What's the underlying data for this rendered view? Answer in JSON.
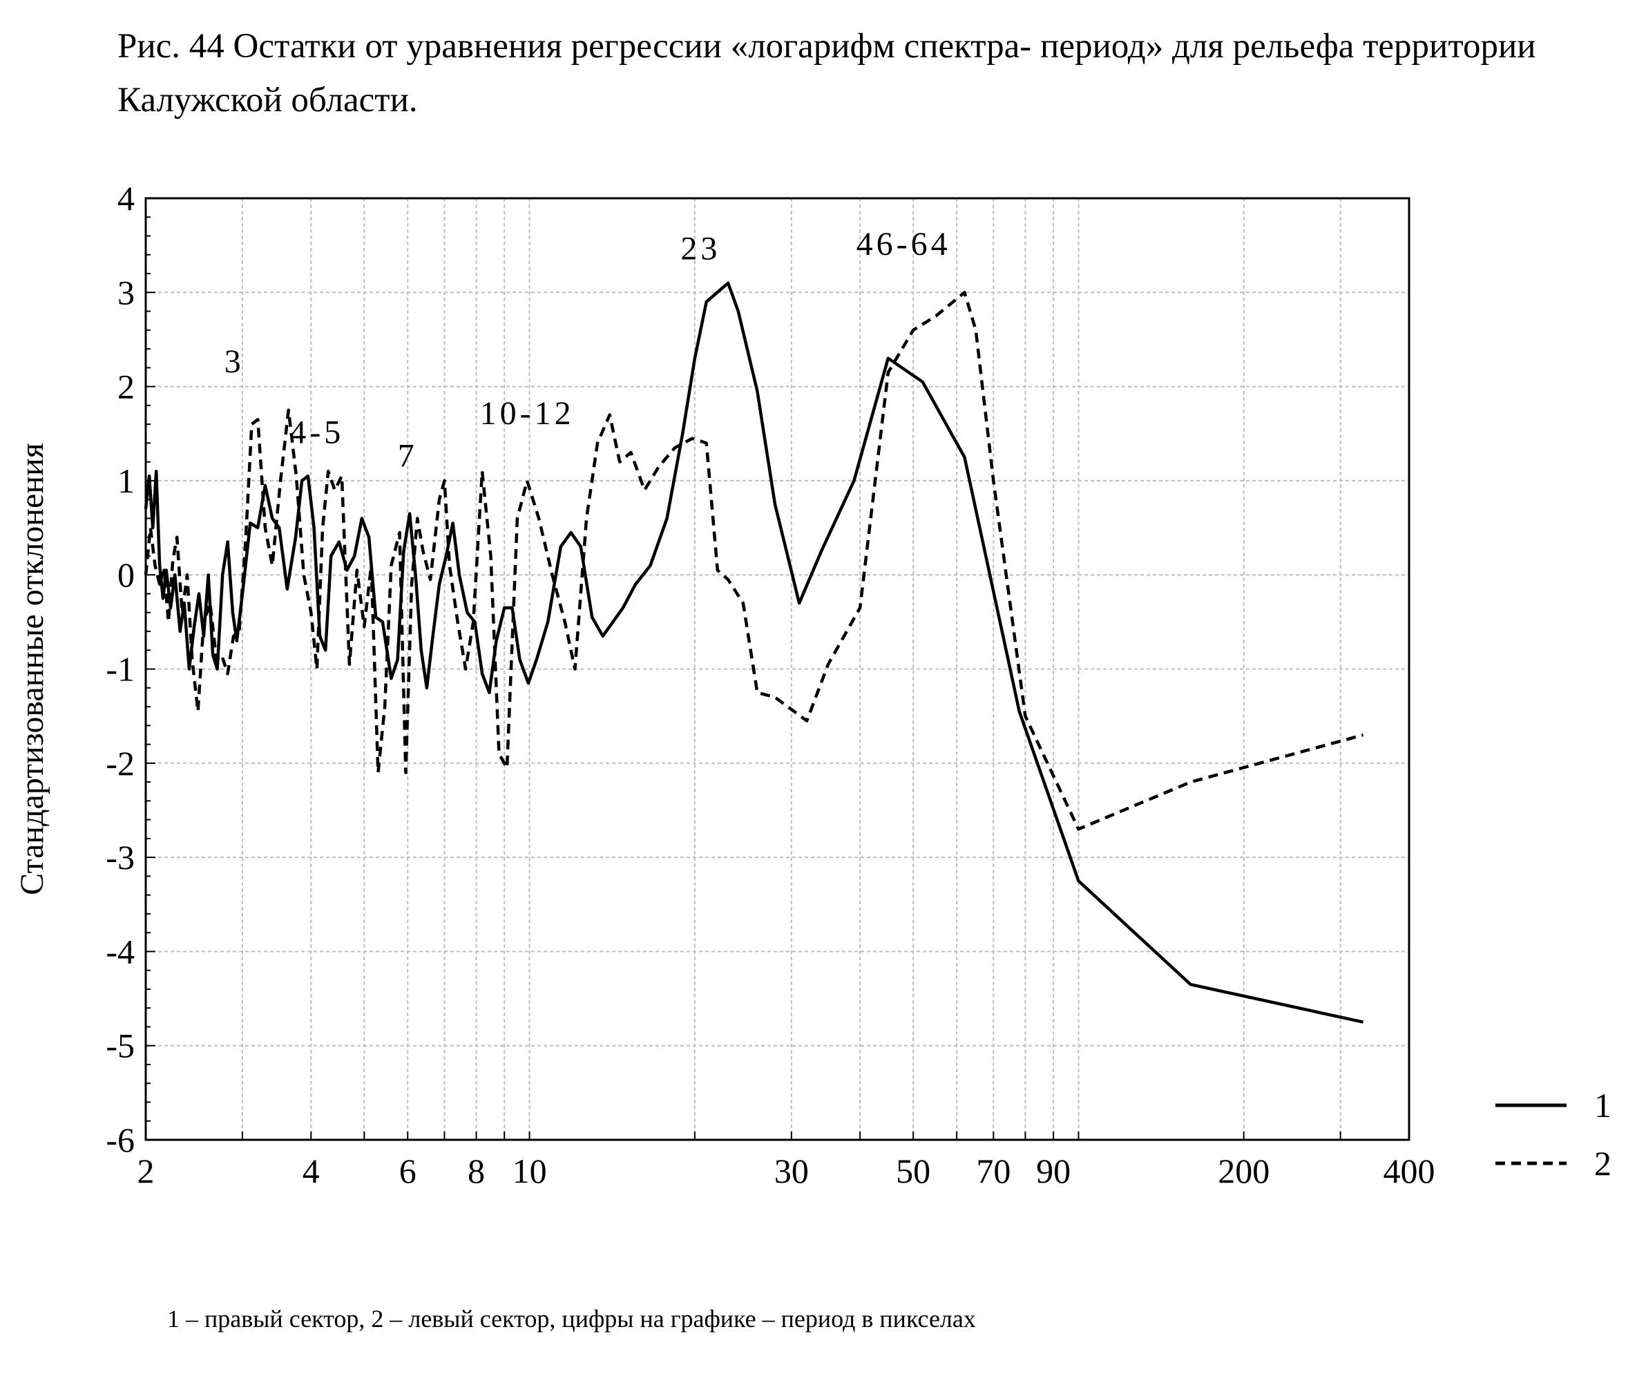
{
  "caption": "Рис. 44 Остатки от уравнения регрессии «логарифм спектра- период» для рельефа территории Калужской области.",
  "note": "1 – правый сектор, 2 – левый сектор, цифры на графике – период в пикселах",
  "chart_data": {
    "type": "line",
    "ylabel": "Стандартизованные отклонения",
    "xlabel": "",
    "x_scale": "log",
    "xlim": [
      2,
      400
    ],
    "ylim": [
      -6,
      4
    ],
    "grid": true,
    "legend_position": "right",
    "x_tick_labels": [
      "2",
      "4",
      "6",
      "8",
      "10",
      "30",
      "50",
      "70",
      "90",
      "200",
      "400"
    ],
    "y_tick_labels": [
      "4",
      "3",
      "2",
      "1",
      "0",
      "-1",
      "-2",
      "-3",
      "-4",
      "-5",
      "-6"
    ],
    "annotations": [
      {
        "text": "3",
        "x": 2.9,
        "y": 2.15
      },
      {
        "text": "4-5",
        "x": 4.1,
        "y": 1.4
      },
      {
        "text": "7",
        "x": 6,
        "y": 1.15
      },
      {
        "text": "10-12",
        "x": 9.9,
        "y": 1.6
      },
      {
        "text": "23",
        "x": 20.5,
        "y": 3.35
      },
      {
        "text": "46-64",
        "x": 48,
        "y": 3.4
      }
    ],
    "series": [
      {
        "name": "1",
        "style": "solid",
        "points": [
          [
            2.0,
            0.7
          ],
          [
            2.03,
            1.05
          ],
          [
            2.06,
            0.5
          ],
          [
            2.09,
            1.1
          ],
          [
            2.12,
            0.1
          ],
          [
            2.15,
            -0.25
          ],
          [
            2.18,
            0.05
          ],
          [
            2.22,
            -0.35
          ],
          [
            2.26,
            0.0
          ],
          [
            2.31,
            -0.6
          ],
          [
            2.35,
            -0.3
          ],
          [
            2.4,
            -1.0
          ],
          [
            2.45,
            -0.55
          ],
          [
            2.5,
            -0.2
          ],
          [
            2.55,
            -0.65
          ],
          [
            2.6,
            0.0
          ],
          [
            2.65,
            -0.85
          ],
          [
            2.7,
            -1.0
          ],
          [
            2.76,
            0.0
          ],
          [
            2.82,
            0.35
          ],
          [
            2.88,
            -0.4
          ],
          [
            2.93,
            -0.7
          ],
          [
            3.0,
            -0.2
          ],
          [
            3.1,
            0.55
          ],
          [
            3.2,
            0.5
          ],
          [
            3.3,
            0.95
          ],
          [
            3.4,
            0.6
          ],
          [
            3.5,
            0.5
          ],
          [
            3.62,
            -0.15
          ],
          [
            3.75,
            0.4
          ],
          [
            3.85,
            1.0
          ],
          [
            3.95,
            1.05
          ],
          [
            4.05,
            0.5
          ],
          [
            4.15,
            -0.65
          ],
          [
            4.25,
            -0.8
          ],
          [
            4.35,
            0.2
          ],
          [
            4.5,
            0.35
          ],
          [
            4.65,
            0.05
          ],
          [
            4.8,
            0.2
          ],
          [
            4.95,
            0.6
          ],
          [
            5.1,
            0.4
          ],
          [
            5.25,
            -0.45
          ],
          [
            5.4,
            -0.5
          ],
          [
            5.6,
            -1.1
          ],
          [
            5.75,
            -0.9
          ],
          [
            5.9,
            0.25
          ],
          [
            6.05,
            0.65
          ],
          [
            6.2,
            0.0
          ],
          [
            6.35,
            -0.8
          ],
          [
            6.5,
            -1.2
          ],
          [
            6.65,
            -0.7
          ],
          [
            6.85,
            -0.1
          ],
          [
            7.05,
            0.2
          ],
          [
            7.25,
            0.55
          ],
          [
            7.45,
            0.0
          ],
          [
            7.7,
            -0.4
          ],
          [
            7.95,
            -0.5
          ],
          [
            8.2,
            -1.05
          ],
          [
            8.45,
            -1.25
          ],
          [
            8.7,
            -0.7
          ],
          [
            9.0,
            -0.35
          ],
          [
            9.3,
            -0.35
          ],
          [
            9.6,
            -0.9
          ],
          [
            9.95,
            -1.15
          ],
          [
            10.3,
            -0.9
          ],
          [
            10.8,
            -0.5
          ],
          [
            11.4,
            0.3
          ],
          [
            11.9,
            0.45
          ],
          [
            12.4,
            0.3
          ],
          [
            13.0,
            -0.45
          ],
          [
            13.6,
            -0.65
          ],
          [
            14.8,
            -0.35
          ],
          [
            15.6,
            -0.1
          ],
          [
            16.6,
            0.1
          ],
          [
            17.8,
            0.6
          ],
          [
            19.0,
            1.5
          ],
          [
            20.0,
            2.3
          ],
          [
            21.0,
            2.9
          ],
          [
            23.0,
            3.1
          ],
          [
            24.0,
            2.8
          ],
          [
            26.0,
            1.95
          ],
          [
            28.0,
            0.75
          ],
          [
            31.0,
            -0.3
          ],
          [
            34.0,
            0.25
          ],
          [
            39.0,
            1.0
          ],
          [
            45.0,
            2.3
          ],
          [
            52.0,
            2.05
          ],
          [
            62.0,
            1.25
          ],
          [
            78.0,
            -1.45
          ],
          [
            100.0,
            -3.25
          ],
          [
            160.0,
            -4.35
          ],
          [
            330.0,
            -4.75
          ]
        ]
      },
      {
        "name": "2",
        "style": "dashed",
        "points": [
          [
            2.0,
            0.0
          ],
          [
            2.04,
            0.5
          ],
          [
            2.08,
            0.1
          ],
          [
            2.12,
            -0.1
          ],
          [
            2.16,
            0.05
          ],
          [
            2.2,
            -0.5
          ],
          [
            2.24,
            0.15
          ],
          [
            2.28,
            0.4
          ],
          [
            2.33,
            -0.4
          ],
          [
            2.38,
            0.0
          ],
          [
            2.43,
            -0.9
          ],
          [
            2.49,
            -1.45
          ],
          [
            2.55,
            -0.5
          ],
          [
            2.62,
            -0.3
          ],
          [
            2.69,
            -0.9
          ],
          [
            2.75,
            -0.85
          ],
          [
            2.82,
            -1.05
          ],
          [
            2.89,
            -0.65
          ],
          [
            2.96,
            -0.6
          ],
          [
            3.04,
            0.35
          ],
          [
            3.12,
            1.6
          ],
          [
            3.2,
            1.65
          ],
          [
            3.3,
            0.5
          ],
          [
            3.4,
            0.1
          ],
          [
            3.52,
            1.0
          ],
          [
            3.64,
            1.75
          ],
          [
            3.76,
            1.05
          ],
          [
            3.88,
            0.0
          ],
          [
            4.0,
            -0.4
          ],
          [
            4.1,
            -1.0
          ],
          [
            4.2,
            0.5
          ],
          [
            4.3,
            1.1
          ],
          [
            4.42,
            0.9
          ],
          [
            4.55,
            1.05
          ],
          [
            4.7,
            -0.95
          ],
          [
            4.85,
            0.05
          ],
          [
            5.0,
            -0.55
          ],
          [
            5.15,
            0.1
          ],
          [
            5.3,
            -2.1
          ],
          [
            5.45,
            -1.4
          ],
          [
            5.6,
            0.1
          ],
          [
            5.8,
            0.45
          ],
          [
            5.95,
            -2.1
          ],
          [
            6.1,
            -0.1
          ],
          [
            6.25,
            0.6
          ],
          [
            6.4,
            0.25
          ],
          [
            6.6,
            -0.05
          ],
          [
            6.85,
            0.8
          ],
          [
            7.0,
            1.0
          ],
          [
            7.15,
            0.1
          ],
          [
            7.4,
            -0.5
          ],
          [
            7.65,
            -1.0
          ],
          [
            7.9,
            -0.5
          ],
          [
            8.2,
            1.1
          ],
          [
            8.5,
            0.2
          ],
          [
            8.8,
            -1.9
          ],
          [
            9.1,
            -2.05
          ],
          [
            9.5,
            0.6
          ],
          [
            9.9,
            1.0
          ],
          [
            10.4,
            0.6
          ],
          [
            11.0,
            0.0
          ],
          [
            11.6,
            -0.5
          ],
          [
            12.1,
            -1.0
          ],
          [
            12.7,
            0.6
          ],
          [
            13.3,
            1.4
          ],
          [
            14.0,
            1.7
          ],
          [
            14.6,
            1.2
          ],
          [
            15.3,
            1.3
          ],
          [
            16.2,
            0.9
          ],
          [
            17.2,
            1.15
          ],
          [
            18.4,
            1.35
          ],
          [
            19.8,
            1.45
          ],
          [
            21.0,
            1.4
          ],
          [
            22.0,
            0.05
          ],
          [
            23.0,
            -0.05
          ],
          [
            24.5,
            -0.3
          ],
          [
            26.0,
            -1.25
          ],
          [
            28.0,
            -1.3
          ],
          [
            32.0,
            -1.55
          ],
          [
            35.0,
            -0.95
          ],
          [
            40.0,
            -0.35
          ],
          [
            45.0,
            2.15
          ],
          [
            50.0,
            2.6
          ],
          [
            55.0,
            2.75
          ],
          [
            62.0,
            3.0
          ],
          [
            65.0,
            2.6
          ],
          [
            70.0,
            1.0
          ],
          [
            80.0,
            -1.5
          ],
          [
            100.0,
            -2.7
          ],
          [
            160.0,
            -2.2
          ],
          [
            330.0,
            -1.7
          ]
        ]
      }
    ]
  }
}
